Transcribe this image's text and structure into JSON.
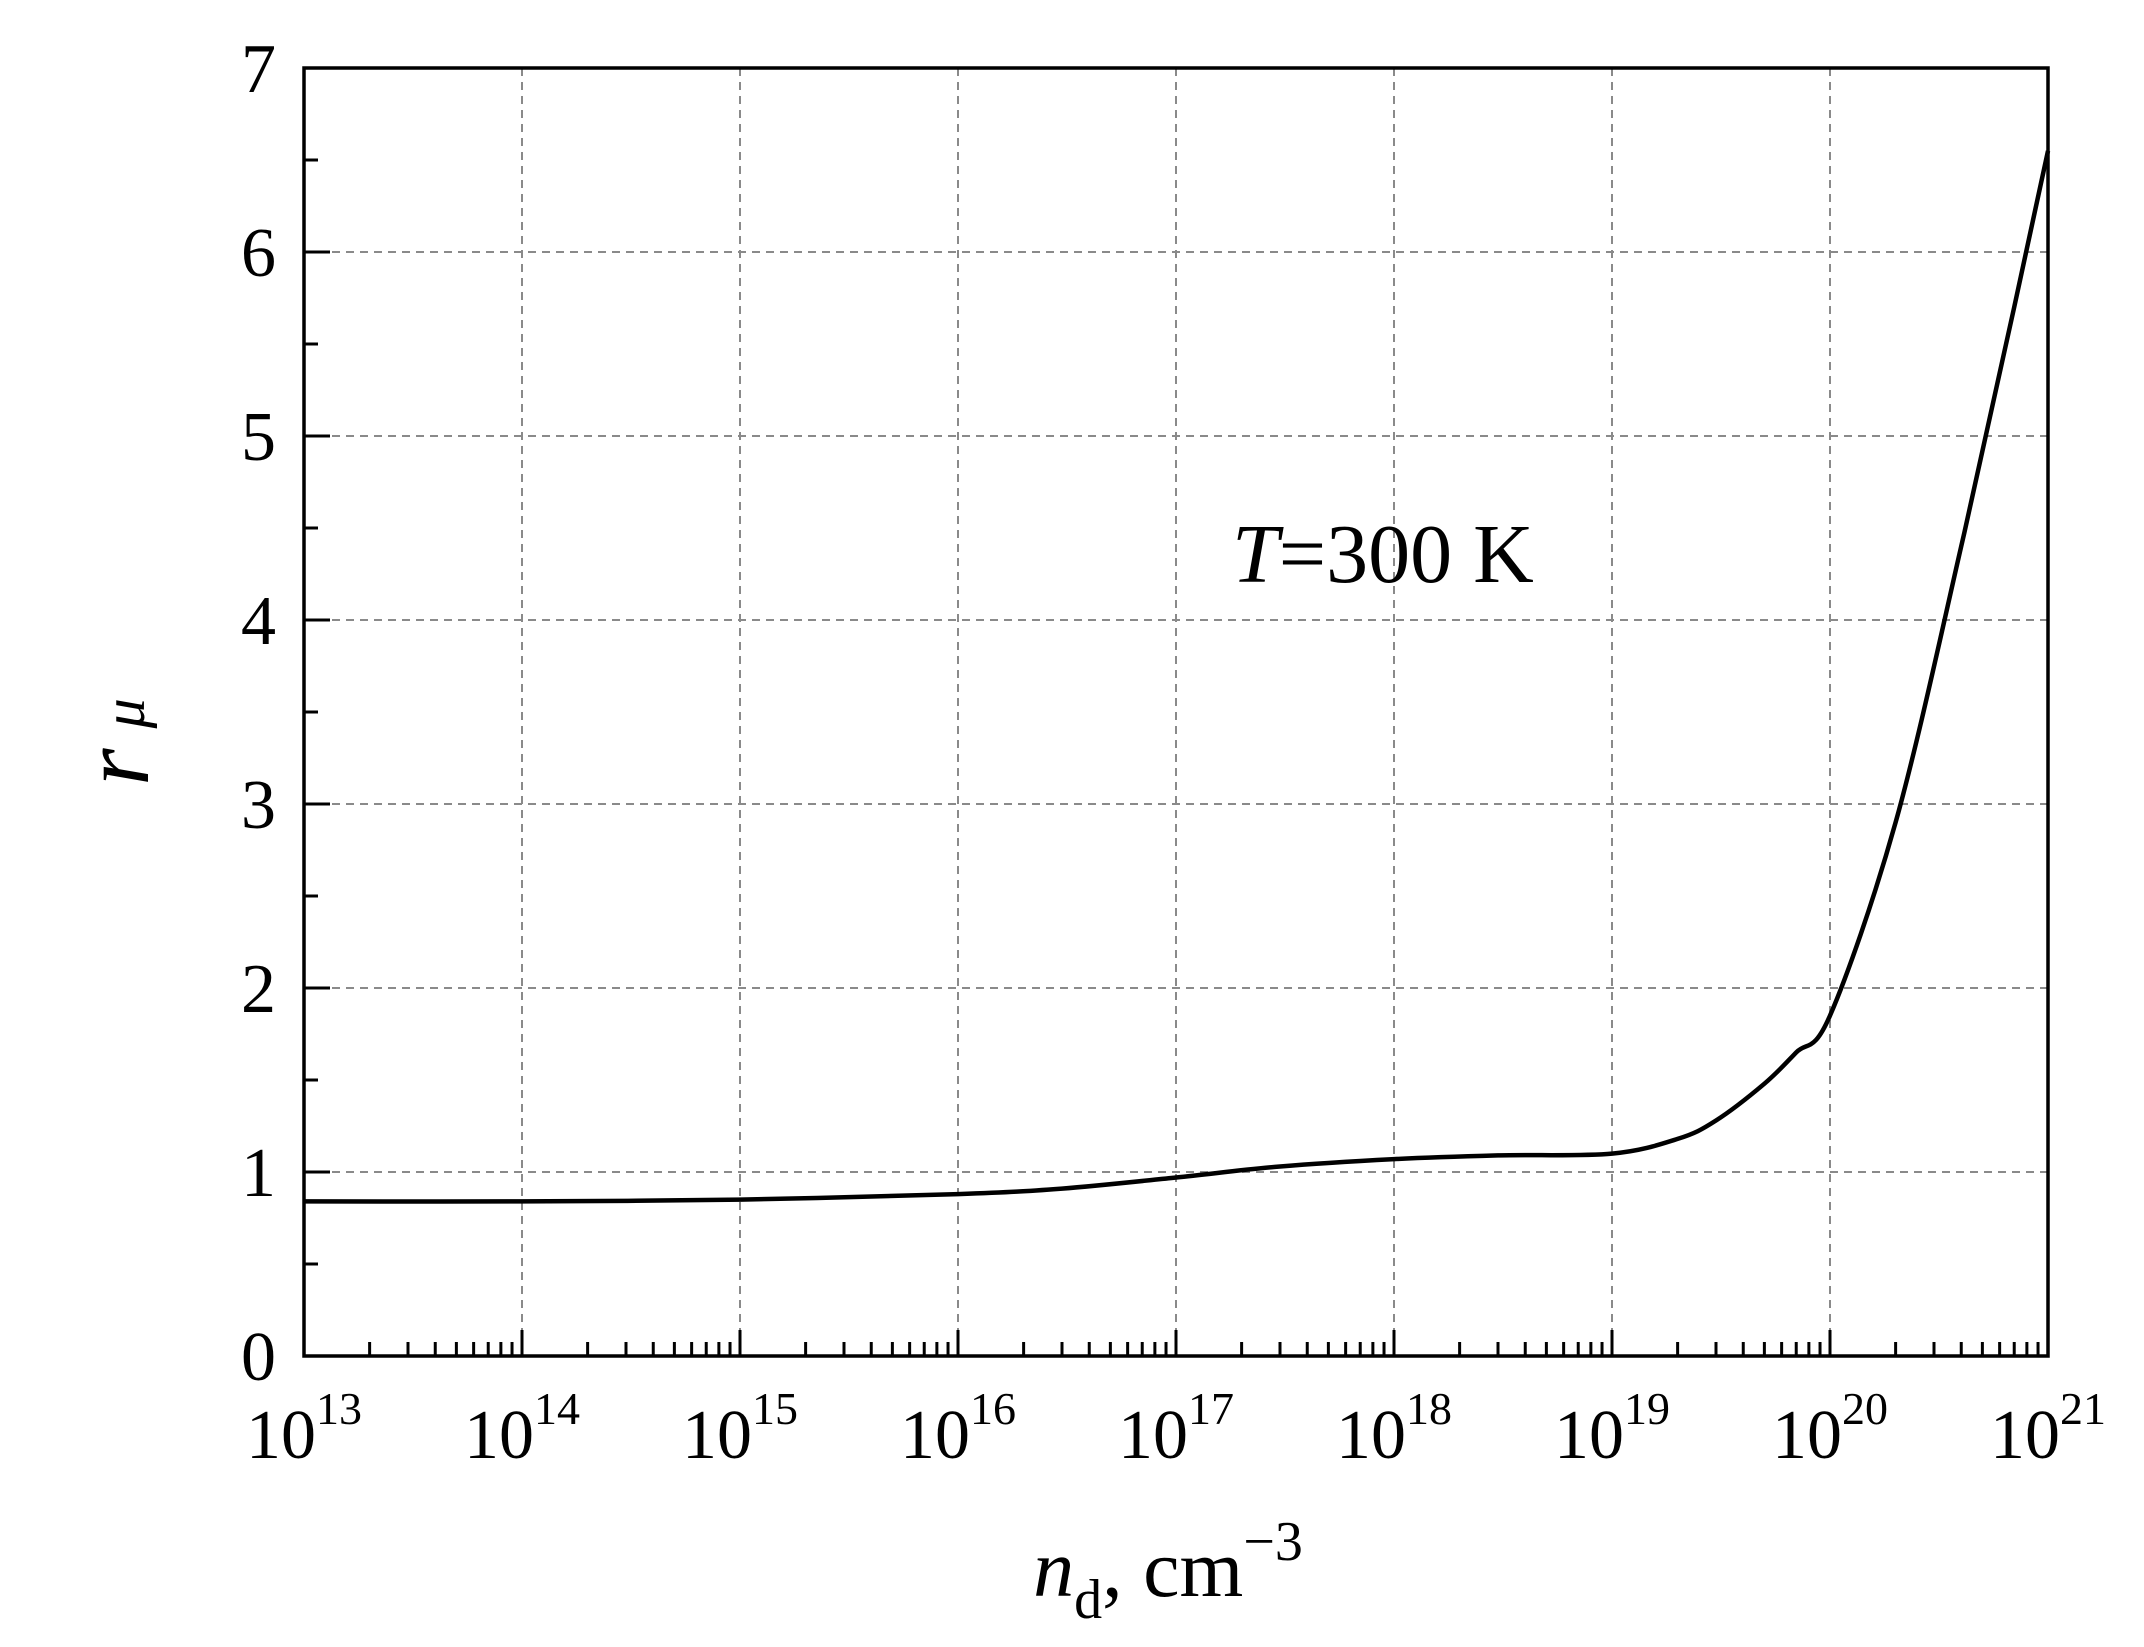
{
  "chart_data": {
    "type": "line",
    "title": "",
    "xlabel": {
      "main": "n",
      "sub": "d",
      "rest": ", cm",
      "sup": "−3"
    },
    "ylabel": {
      "main": "r",
      "sub": "μ"
    },
    "xscale": "log",
    "xlim": [
      10000000000000.0,
      1e+21
    ],
    "ylim": [
      0,
      7
    ],
    "grid": true,
    "x_tick_labels": [
      {
        "base": "10",
        "exp": "13",
        "value": 10000000000000.0
      },
      {
        "base": "10",
        "exp": "14",
        "value": 100000000000000.0
      },
      {
        "base": "10",
        "exp": "15",
        "value": 1000000000000000.0
      },
      {
        "base": "10",
        "exp": "16",
        "value": 1e+16
      },
      {
        "base": "10",
        "exp": "17",
        "value": 1e+17
      },
      {
        "base": "10",
        "exp": "18",
        "value": 1e+18
      },
      {
        "base": "10",
        "exp": "19",
        "value": 1e+19
      },
      {
        "base": "10",
        "exp": "20",
        "value": 1e+20
      },
      {
        "base": "10",
        "exp": "21",
        "value": 1e+21
      }
    ],
    "y_tick_labels": [
      "0",
      "1",
      "2",
      "3",
      "4",
      "5",
      "6",
      "7"
    ],
    "annotation": {
      "italic": "T",
      "rest": "=300 K"
    },
    "series": [
      {
        "x": [
          10000000000000.0,
          100000000000000.0,
          1000000000000000.0,
          1e+16,
          3e+16,
          1e+17,
          3e+17,
          1e+18,
          3e+18,
          1e+19,
          2e+19,
          3e+19,
          5e+19,
          7e+19,
          1e+20,
          2e+20,
          4e+20,
          7e+20,
          1e+21
        ],
        "y": [
          0.84,
          0.84,
          0.85,
          0.88,
          0.91,
          0.97,
          1.03,
          1.07,
          1.09,
          1.1,
          1.18,
          1.28,
          1.48,
          1.65,
          1.85,
          2.9,
          4.4,
          5.7,
          6.55
        ]
      }
    ]
  }
}
